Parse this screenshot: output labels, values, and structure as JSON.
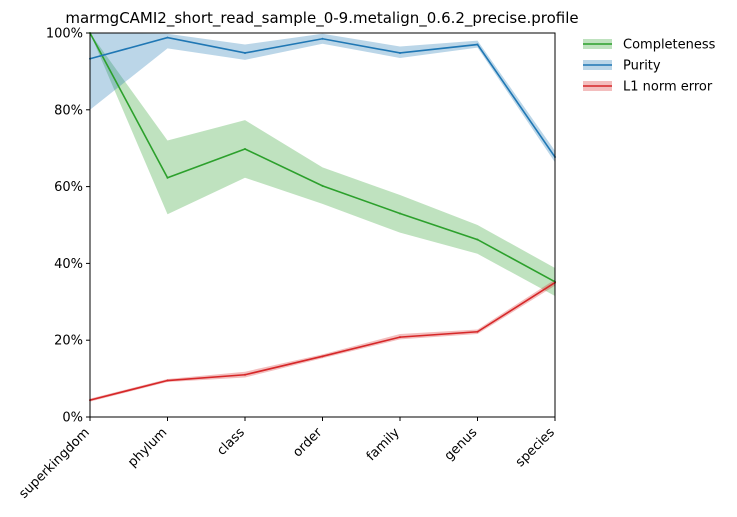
{
  "chart_data": {
    "type": "line",
    "title": "marmgCAMI2_short_read_sample_0-9.metalign_0.6.2_precise.profile",
    "xlabel": "",
    "ylabel": "",
    "categories": [
      "superkingdom",
      "phylum",
      "class",
      "order",
      "family",
      "genus",
      "species"
    ],
    "ylim": [
      0,
      100
    ],
    "yticks": [
      0,
      20,
      40,
      60,
      80,
      100
    ],
    "ytick_labels": [
      "0%",
      "20%",
      "40%",
      "60%",
      "80%",
      "100%"
    ],
    "legend_position": "outside-top-right",
    "grid": false,
    "series": [
      {
        "name": "Completeness",
        "color": "#2ca02c",
        "values": [
          100,
          62.3,
          69.8,
          60.2,
          53.0,
          46.2,
          35.2
        ],
        "lower": [
          100,
          52.8,
          62.3,
          55.5,
          48.0,
          42.5,
          31.5
        ],
        "upper": [
          100,
          72.0,
          77.3,
          65.0,
          57.8,
          50.0,
          38.8
        ]
      },
      {
        "name": "Purity",
        "color": "#1f77b4",
        "values": [
          93.3,
          98.8,
          94.8,
          98.5,
          94.8,
          97.0,
          67.7
        ],
        "lower": [
          80.0,
          96.0,
          93.0,
          97.2,
          93.5,
          96.2,
          66.3
        ],
        "upper": [
          100,
          99.8,
          97.0,
          99.8,
          96.5,
          98.0,
          69.3
        ]
      },
      {
        "name": "L1 norm error",
        "color": "#d62728",
        "values": [
          4.4,
          9.5,
          11.0,
          15.8,
          20.8,
          22.2,
          35.0
        ],
        "lower": [
          4.0,
          9.1,
          10.3,
          15.3,
          20.2,
          21.6,
          34.2
        ],
        "upper": [
          4.8,
          9.9,
          11.8,
          16.3,
          21.6,
          22.8,
          35.8
        ]
      }
    ]
  }
}
